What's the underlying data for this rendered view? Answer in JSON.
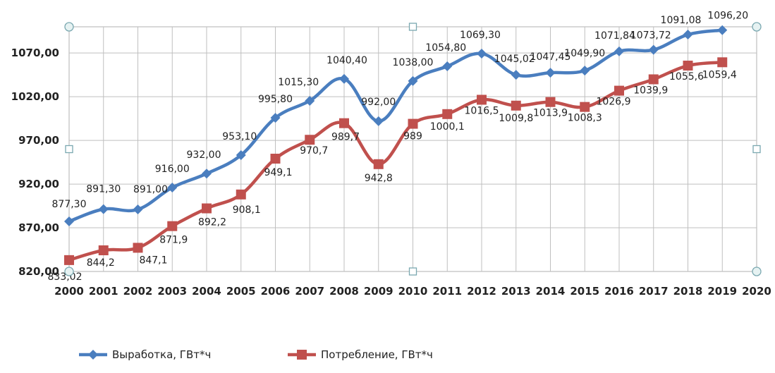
{
  "chart_data": {
    "type": "line",
    "x": [
      2000,
      2001,
      2002,
      2003,
      2004,
      2005,
      2006,
      2007,
      2008,
      2009,
      2010,
      2011,
      2012,
      2013,
      2014,
      2015,
      2016,
      2017,
      2018,
      2019
    ],
    "x_ticks": [
      "2000",
      "2001",
      "2002",
      "2003",
      "2004",
      "2005",
      "2006",
      "2007",
      "2008",
      "2009",
      "2010",
      "2011",
      "2012",
      "2013",
      "2014",
      "2015",
      "2016",
      "2017",
      "2018",
      "2019",
      "2020"
    ],
    "xlim": [
      2000,
      2020
    ],
    "y_ticks": [
      "820,00",
      "870,00",
      "920,00",
      "970,00",
      "1020,00",
      "1070,00"
    ],
    "ylim": [
      820,
      1100
    ],
    "grid": true,
    "legend_position": "bottom",
    "series": [
      {
        "name": "Выработка, ГВт*ч",
        "color": "#4a7ebf",
        "marker": "diamond",
        "values": [
          877.3,
          891.3,
          891.0,
          916.0,
          932.0,
          953.1,
          995.8,
          1015.3,
          1040.4,
          992.0,
          1038.0,
          1054.8,
          1069.3,
          1045.02,
          1047.45,
          1049.9,
          1071.84,
          1073.72,
          1091.08,
          1096.2
        ],
        "labels": [
          "877,30",
          "891,30",
          "891,00",
          "916,00",
          "932,00",
          "953,10",
          "995,80",
          "1015,30",
          "1040,40",
          "992,00",
          "1038,00",
          "1054,80",
          "1069,30",
          "1045,02",
          "1047,45",
          "1049,90",
          "1071,84",
          "1073,72",
          "1091,08",
          "1096,20"
        ]
      },
      {
        "name": "Потребление, ГВт*ч",
        "color": "#c0504d",
        "marker": "square",
        "values": [
          833.02,
          844.2,
          847.1,
          871.9,
          892.2,
          908.1,
          949.1,
          970.7,
          989.7,
          942.8,
          989,
          1000.1,
          1016.5,
          1009.8,
          1013.9,
          1008.3,
          1026.9,
          1039.9,
          1055.6,
          1059.4
        ],
        "labels": [
          "833,02",
          "844,2",
          "847,1",
          "871,9",
          "892,2",
          "908,1",
          "949,1",
          "970,7",
          "989,7",
          "942,8",
          "989",
          "1000,1",
          "1016,5",
          "1009,8",
          "1013,9",
          "1008,3",
          "1026,9",
          "1039,9",
          "1055,6",
          "1059,4"
        ]
      }
    ]
  }
}
